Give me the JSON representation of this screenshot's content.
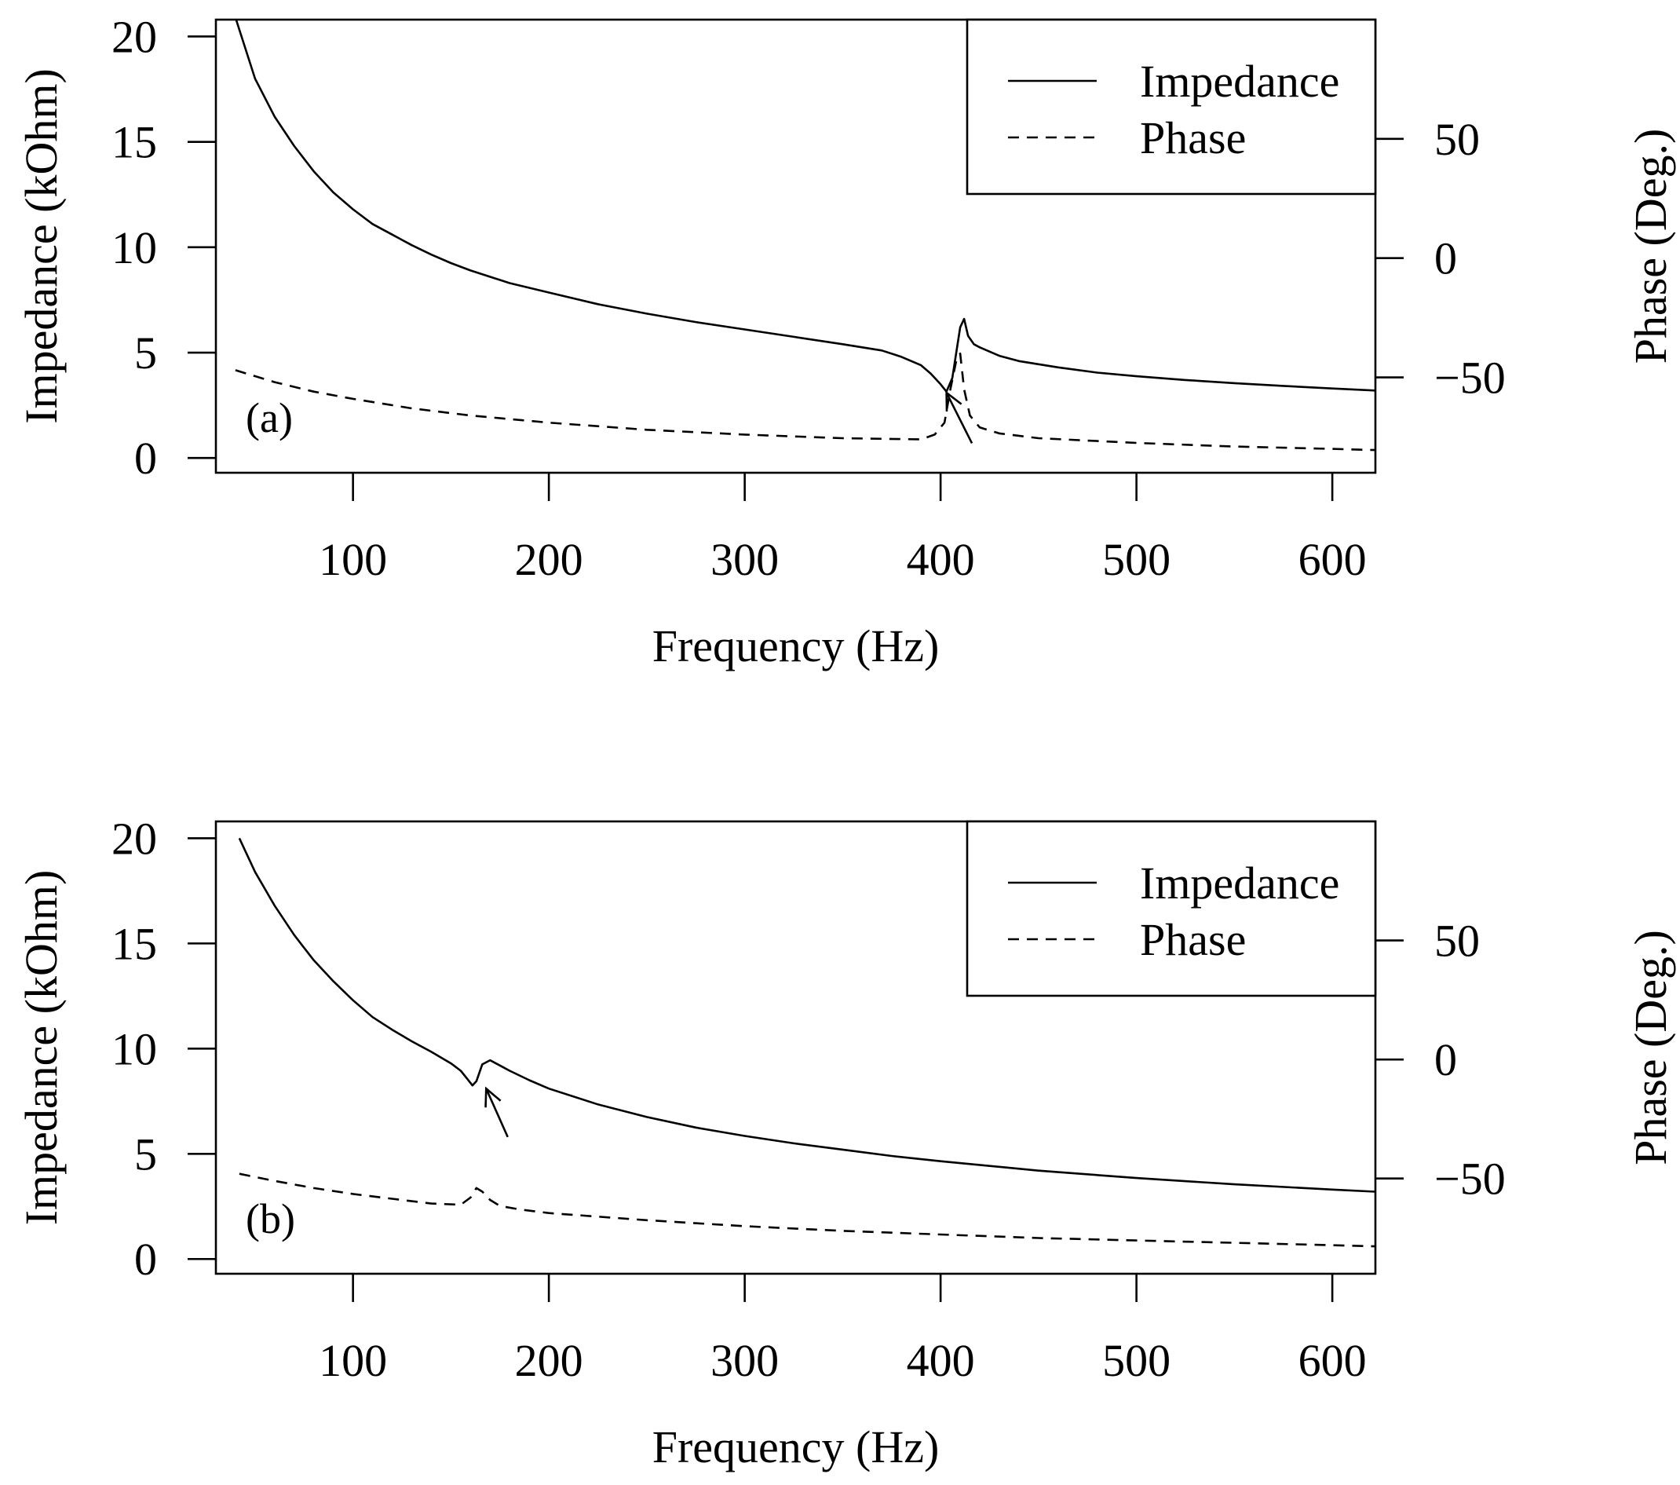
{
  "chart_data": [
    {
      "type": "line",
      "panel_label": "(a)",
      "xlabel": "Frequency (Hz)",
      "ylabel": "Impedance (kOhm)",
      "y2label": "Phase (Deg.)",
      "xlim": [
        30,
        622
      ],
      "ylim": [
        -0.7,
        20.8
      ],
      "y2lim": [
        -90,
        100
      ],
      "xticks": [
        100,
        200,
        300,
        400,
        500,
        600
      ],
      "yticks": [
        0,
        5,
        10,
        15,
        20
      ],
      "y2ticks": [
        -50,
        0,
        50
      ],
      "legend": {
        "position": "top-right",
        "entries": [
          "Impedance",
          "Phase"
        ]
      },
      "annotation": {
        "type": "arrow",
        "from": [
          416,
          0.7
        ],
        "to": [
          403,
          3.1
        ]
      },
      "series": [
        {
          "name": "Impedance",
          "axis": "left",
          "style": "solid",
          "x": [
            40,
            50,
            60,
            70,
            80,
            90,
            100,
            110,
            120,
            130,
            140,
            150,
            160,
            180,
            200,
            225,
            250,
            275,
            300,
            325,
            350,
            370,
            380,
            390,
            395,
            400,
            403,
            406,
            408,
            410,
            412,
            414,
            417,
            420,
            425,
            430,
            440,
            460,
            480,
            500,
            525,
            550,
            575,
            600,
            622
          ],
          "values": [
            20.9,
            18.0,
            16.2,
            14.8,
            13.6,
            12.6,
            11.8,
            11.1,
            10.6,
            10.1,
            9.65,
            9.25,
            8.9,
            8.3,
            7.85,
            7.3,
            6.85,
            6.45,
            6.1,
            5.75,
            5.4,
            5.1,
            4.8,
            4.4,
            4.0,
            3.5,
            3.15,
            3.8,
            5.0,
            6.2,
            6.6,
            5.8,
            5.4,
            5.25,
            5.05,
            4.85,
            4.6,
            4.3,
            4.05,
            3.88,
            3.7,
            3.55,
            3.42,
            3.3,
            3.2
          ]
        },
        {
          "name": "Phase",
          "axis": "right",
          "style": "dashed",
          "x": [
            40,
            60,
            80,
            100,
            130,
            160,
            200,
            250,
            300,
            350,
            390,
            397,
            402,
            405,
            408,
            410,
            412,
            415,
            420,
            430,
            450,
            500,
            550,
            600,
            622
          ],
          "values": [
            -47,
            -52,
            -56,
            -59,
            -63,
            -66,
            -69,
            -72,
            -74,
            -75.5,
            -76,
            -74,
            -69,
            -55,
            -43,
            -40,
            -55,
            -66,
            -71,
            -73.5,
            -75.5,
            -77.5,
            -79,
            -80,
            -80.5
          ]
        }
      ]
    },
    {
      "type": "line",
      "panel_label": "(b)",
      "xlabel": "Frequency (Hz)",
      "ylabel": "Impedance (kOhm)",
      "y2label": "Phase (Deg.)",
      "xlim": [
        30,
        622
      ],
      "ylim": [
        -0.7,
        20.8
      ],
      "y2lim": [
        -90,
        100
      ],
      "xticks": [
        100,
        200,
        300,
        400,
        500,
        600
      ],
      "yticks": [
        0,
        5,
        10,
        15,
        20
      ],
      "y2ticks": [
        -50,
        0,
        50
      ],
      "legend": {
        "position": "top-right",
        "entries": [
          "Impedance",
          "Phase"
        ]
      },
      "annotation": {
        "type": "arrow",
        "from": [
          179,
          5.8
        ],
        "to": [
          168,
          8.1
        ]
      },
      "series": [
        {
          "name": "Impedance",
          "axis": "left",
          "style": "solid",
          "x": [
            42,
            50,
            60,
            70,
            80,
            90,
            100,
            110,
            120,
            130,
            140,
            150,
            155,
            158,
            161,
            163,
            166,
            170,
            175,
            180,
            190,
            200,
            225,
            250,
            275,
            300,
            325,
            350,
            375,
            400,
            450,
            500,
            550,
            600,
            622
          ],
          "values": [
            20.0,
            18.4,
            16.8,
            15.4,
            14.2,
            13.2,
            12.3,
            11.5,
            10.9,
            10.35,
            9.85,
            9.3,
            8.95,
            8.6,
            8.25,
            8.45,
            9.25,
            9.45,
            9.2,
            8.95,
            8.5,
            8.1,
            7.35,
            6.75,
            6.25,
            5.85,
            5.5,
            5.2,
            4.9,
            4.65,
            4.2,
            3.85,
            3.55,
            3.3,
            3.2
          ]
        },
        {
          "name": "Phase",
          "axis": "right",
          "style": "dashed",
          "x": [
            42,
            60,
            80,
            100,
            120,
            140,
            155,
            160,
            163,
            166,
            170,
            175,
            185,
            200,
            250,
            300,
            350,
            400,
            450,
            500,
            550,
            600,
            622
          ],
          "values": [
            -48,
            -51,
            -54,
            -56.5,
            -58.5,
            -60.5,
            -61,
            -58,
            -54,
            -55.5,
            -59,
            -61.5,
            -63,
            -64.5,
            -67.5,
            -70,
            -72,
            -73.5,
            -75,
            -76,
            -77,
            -78,
            -78.5
          ]
        }
      ]
    }
  ]
}
